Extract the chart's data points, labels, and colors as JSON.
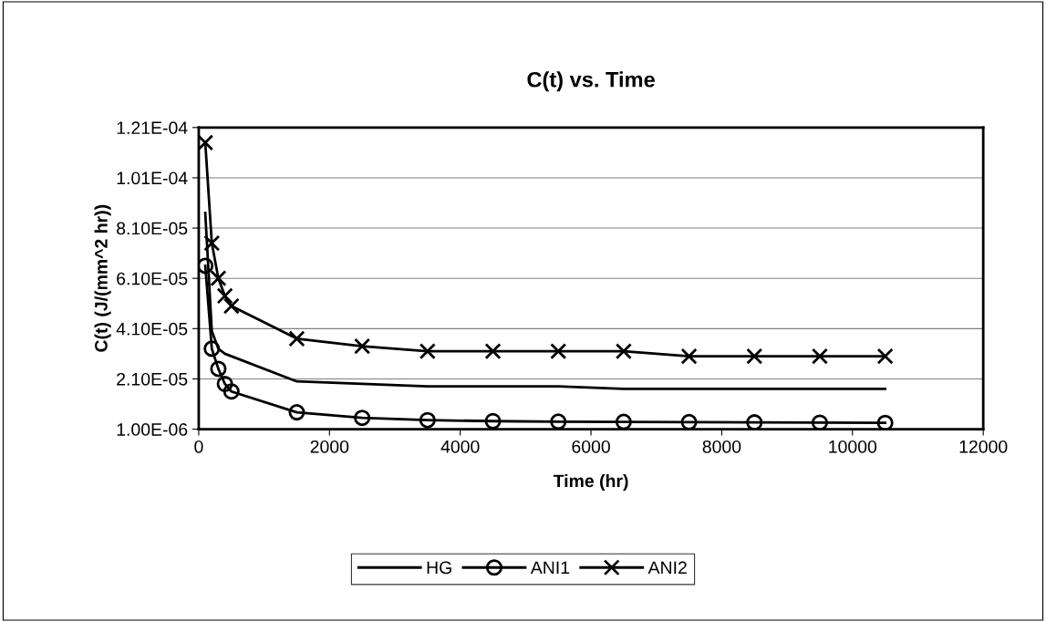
{
  "chart_data": {
    "type": "line",
    "title": "C(t) vs. Time",
    "xlabel": "Time (hr)",
    "ylabel": "C(t) (J/(mm^2 hr))",
    "x": [
      100,
      200,
      300,
      400,
      500,
      1500,
      2500,
      3500,
      4500,
      5500,
      6500,
      7500,
      8500,
      9500,
      10500
    ],
    "series": [
      {
        "name": "HG",
        "color": "#000000",
        "marker": "none",
        "values": [
          8.7e-05,
          4e-05,
          3.3e-05,
          3.1e-05,
          3e-05,
          2e-05,
          1.9e-05,
          1.8e-05,
          1.8e-05,
          1.8e-05,
          1.7e-05,
          1.7e-05,
          1.7e-05,
          1.7e-05,
          1.7e-05
        ]
      },
      {
        "name": "ANI1",
        "color": "#000000",
        "marker": "circle",
        "values": [
          6.6e-05,
          3.3e-05,
          2.5e-05,
          1.9e-05,
          1.6e-05,
          7.7e-06,
          5.5e-06,
          4.6e-06,
          4.2e-06,
          4e-06,
          3.9e-06,
          3.8e-06,
          3.7e-06,
          3.6e-06,
          3.5e-06
        ]
      },
      {
        "name": "ANI2",
        "color": "#000000",
        "marker": "cross",
        "values": [
          0.000115,
          7.5e-05,
          6.1e-05,
          5.4e-05,
          5e-05,
          3.7e-05,
          3.4e-05,
          3.2e-05,
          3.2e-05,
          3.2e-05,
          3.2e-05,
          3e-05,
          3e-05,
          3e-05,
          3e-05
        ]
      }
    ],
    "xlim": [
      0,
      12000
    ],
    "xticks": [
      0,
      2000,
      4000,
      6000,
      8000,
      10000,
      12000
    ],
    "ylim": [
      1e-06,
      0.000121
    ],
    "yticks": [
      {
        "value": 1e-06,
        "label": "1.00E-06"
      },
      {
        "value": 2.1e-05,
        "label": "2.10E-05"
      },
      {
        "value": 4.1e-05,
        "label": "4.10E-05"
      },
      {
        "value": 6.1e-05,
        "label": "6.10E-05"
      },
      {
        "value": 8.1e-05,
        "label": "8.10E-05"
      },
      {
        "value": 0.000101,
        "label": "1.01E-04"
      },
      {
        "value": 0.000121,
        "label": "1.21E-04"
      }
    ],
    "grid": "y",
    "legend": "bottom",
    "line_style": "solid"
  }
}
